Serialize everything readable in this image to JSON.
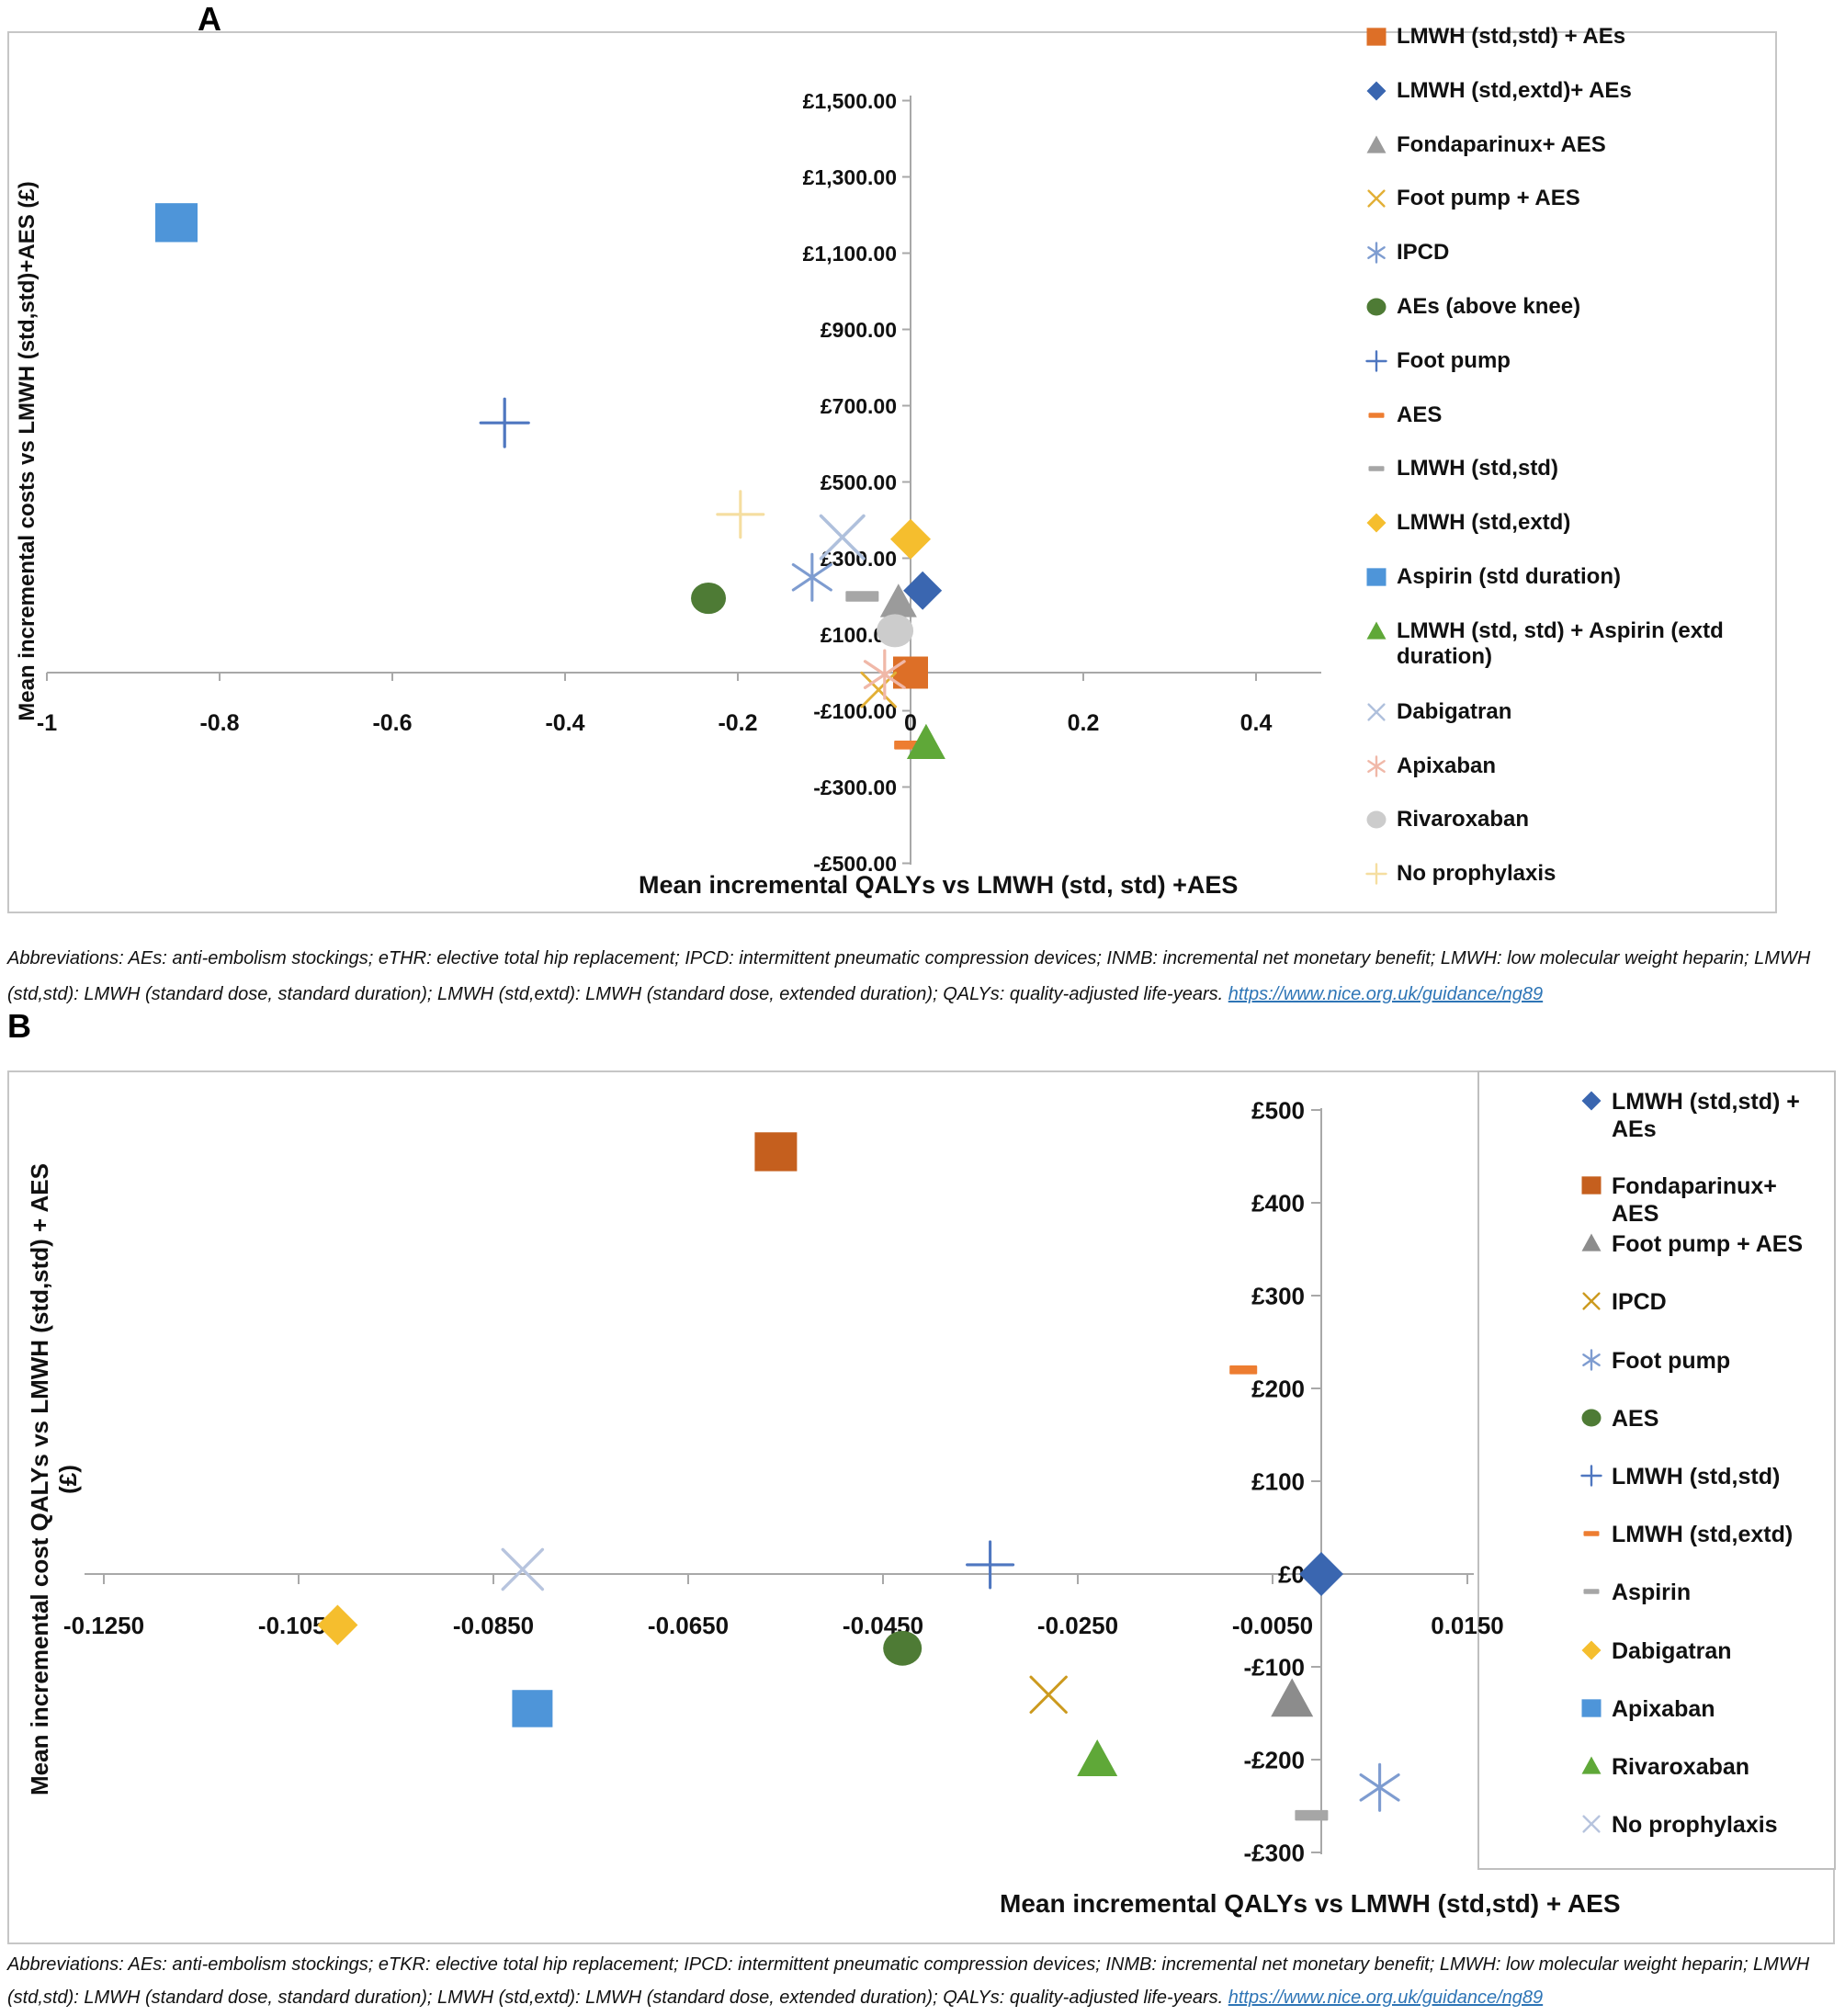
{
  "page": {
    "panel_a_label": "A",
    "panel_b_label": "B"
  },
  "panel_a": {
    "chart_data": {
      "type": "scatter",
      "title": "",
      "xlabel": "Mean incremental QALYs vs LMWH (std, std) +AES",
      "ylabel": "Mean incremental costs vs LMWH (std,std)+AES (£)",
      "xlim": [
        -1.05,
        0.48
      ],
      "ylim": [
        -550,
        1560
      ],
      "grid": false,
      "legend_position": "right",
      "x_ticks": [
        -1,
        -0.8,
        -0.6,
        -0.4,
        -0.2,
        0,
        0.2,
        0.4
      ],
      "x_tick_labels": [
        "-1",
        "-0.8",
        "-0.6",
        "-0.4",
        "-0.2",
        "0",
        "0.2",
        "0.4"
      ],
      "y_ticks": [
        1500,
        1300,
        1100,
        900,
        700,
        500,
        300,
        100,
        -100,
        -300,
        -500
      ],
      "y_tick_labels": [
        "£1,500.00",
        "£1,300.00",
        "£1,100.00",
        "£900.00",
        "£700.00",
        "£500.00",
        "£300.00",
        "£100.00",
        "-£100.00",
        "-£300.00",
        "-£500.00"
      ],
      "series": [
        {
          "name": "LMWH (std,std) + AEs",
          "marker": "square",
          "color": "#dd6f27",
          "x": 0.0,
          "y": 0,
          "size": 38
        },
        {
          "name": "LMWH (std,extd)+ AEs",
          "marker": "diamond",
          "color": "#3a66b0",
          "x": 0.014,
          "y": 215,
          "size": 42
        },
        {
          "name": "Fondaparinux+ AES",
          "marker": "triangle",
          "color": "#9b9b9b",
          "x": -0.014,
          "y": 185,
          "size": 40
        },
        {
          "name": "Foot pump + AES",
          "marker": "x",
          "color": "#e2af35",
          "x": -0.037,
          "y": -45,
          "size": 46
        },
        {
          "name": "IPCD",
          "marker": "asterisk",
          "color": "#7e9cd0",
          "x": -0.114,
          "y": 250,
          "size": 50
        },
        {
          "name": "AEs (above knee)",
          "marker": "circle",
          "color": "#4e7b35",
          "x": -0.234,
          "y": 195,
          "size": 38
        },
        {
          "name": "Foot pump",
          "marker": "plus",
          "color": "#4f77c0",
          "x": -0.47,
          "y": 655,
          "size": 52
        },
        {
          "name": "AES",
          "marker": "dash",
          "color": "#ed7d31",
          "x": -0.003,
          "y": -190,
          "size": 30
        },
        {
          "name": "LMWH (std,std)",
          "marker": "dash",
          "color": "#a6a6a6",
          "x": -0.056,
          "y": 200,
          "size": 36
        },
        {
          "name": "LMWH (std,extd)",
          "marker": "diamond",
          "color": "#f5be2e",
          "x": 0.0,
          "y": 350,
          "size": 44
        },
        {
          "name": "Aspirin (std duration)",
          "marker": "square",
          "color": "#4e95d9",
          "x": -0.85,
          "y": 1180,
          "size": 46
        },
        {
          "name": "LMWH (std, std) + Aspirin (extd duration)",
          "marker": "triangle",
          "color": "#5fa838",
          "x": 0.018,
          "y": -185,
          "size": 42
        },
        {
          "name": "Dabigatran",
          "marker": "x",
          "color": "#afc0dc",
          "x": -0.079,
          "y": 355,
          "size": 58
        },
        {
          "name": "Apixaban",
          "marker": "asterisk",
          "color": "#f0b8a8",
          "x": -0.03,
          "y": -5,
          "size": 52
        },
        {
          "name": "Rivaroxaban",
          "marker": "circle",
          "color": "#cccccc",
          "x": -0.018,
          "y": 110,
          "size": 40
        },
        {
          "name": "No prophylaxis",
          "marker": "plus",
          "color": "#f5dea0",
          "x": -0.197,
          "y": 415,
          "size": 50
        }
      ]
    },
    "footnote_text": "Abbreviations: AEs: anti-embolism stockings; eTHR: elective total hip replacement; IPCD: intermittent pneumatic compression devices; INMB: incremental net monetary benefit; LMWH: low molecular weight heparin; LMWH (std,std): LMWH (standard dose, standard duration); LMWH (std,extd): LMWH (standard dose, extended duration); QALYs: quality-adjusted life-years. ",
    "footnote_link": "https://www.nice.org.uk/guidance/ng89"
  },
  "panel_b": {
    "chart_data": {
      "type": "scatter",
      "title": "",
      "xlabel": "Mean incremental QALYs vs LMWH (std,std) + AES",
      "ylabel": "Mean incremental cost QALYs vs LMWH (std,std) + AES",
      "ylabel2": "(£)",
      "xlim": [
        -0.128,
        0.016
      ],
      "ylim": [
        -310,
        510
      ],
      "grid": false,
      "legend_position": "right",
      "x_ticks": [
        -0.125,
        -0.105,
        -0.085,
        -0.065,
        -0.045,
        -0.025,
        -0.005,
        0.015
      ],
      "x_tick_labels": [
        "-0.1250",
        "-0.1050",
        "-0.0850",
        "-0.0650",
        "-0.0450",
        "-0.0250",
        "-0.0050",
        "0.0150"
      ],
      "y_ticks": [
        500,
        400,
        300,
        200,
        100,
        0,
        -100,
        -200,
        -300
      ],
      "y_tick_labels": [
        "£500",
        "£400",
        "£300",
        "£200",
        "£100",
        "£0",
        "-£100",
        "-£200",
        "-£300"
      ],
      "series": [
        {
          "name": "LMWH (std,std) + AEs",
          "marker": "diamond",
          "color": "#3a66b0",
          "x": 0.0,
          "y": 0,
          "size": 48
        },
        {
          "name": "Fondaparinux+ AES",
          "marker": "square",
          "color": "#c55f1e",
          "x": -0.056,
          "y": 455,
          "size": 46
        },
        {
          "name": "Foot pump + AES",
          "marker": "triangle",
          "color": "#8c8c8c",
          "x": -0.003,
          "y": -135,
          "size": 46
        },
        {
          "name": "IPCD",
          "marker": "x",
          "color": "#cc9a1e",
          "x": -0.028,
          "y": -130,
          "size": 48
        },
        {
          "name": "Foot pump",
          "marker": "asterisk",
          "color": "#7e9cd0",
          "x": 0.006,
          "y": -230,
          "size": 50
        },
        {
          "name": "AES",
          "marker": "circle",
          "color": "#4e7b35",
          "x": -0.043,
          "y": -80,
          "size": 42
        },
        {
          "name": "LMWH (std,std)",
          "marker": "plus",
          "color": "#4f77c0",
          "x": -0.034,
          "y": 10,
          "size": 50
        },
        {
          "name": "LMWH (std,extd)",
          "marker": "dash",
          "color": "#ed7d31",
          "x": -0.008,
          "y": 220,
          "size": 30
        },
        {
          "name": "Aspirin",
          "marker": "dash",
          "color": "#a6a6a6",
          "x": -0.001,
          "y": -260,
          "size": 36
        },
        {
          "name": "Dabigatran",
          "marker": "diamond",
          "color": "#f5be2e",
          "x": -0.101,
          "y": -55,
          "size": 44
        },
        {
          "name": "Apixaban",
          "marker": "square",
          "color": "#4e95d9",
          "x": -0.081,
          "y": -145,
          "size": 44
        },
        {
          "name": "Rivaroxaban",
          "marker": "triangle",
          "color": "#5fa838",
          "x": -0.023,
          "y": -200,
          "size": 44
        },
        {
          "name": "No prophylaxis",
          "marker": "x",
          "color": "#b7c4de",
          "x": -0.082,
          "y": 5,
          "size": 54
        }
      ]
    },
    "footnote_text": "Abbreviations: AEs: anti-embolism stockings; eTKR: elective total hip replacement; IPCD: intermittent pneumatic compression devices; INMB: incremental net monetary benefit; LMWH: low molecular weight heparin; LMWH (std,std): LMWH (standard dose, standard duration); LMWH (std,extd): LMWH (standard dose, extended duration); QALYs: quality-adjusted life-years. ",
    "footnote_link": "https://www.nice.org.uk/guidance/ng89"
  }
}
